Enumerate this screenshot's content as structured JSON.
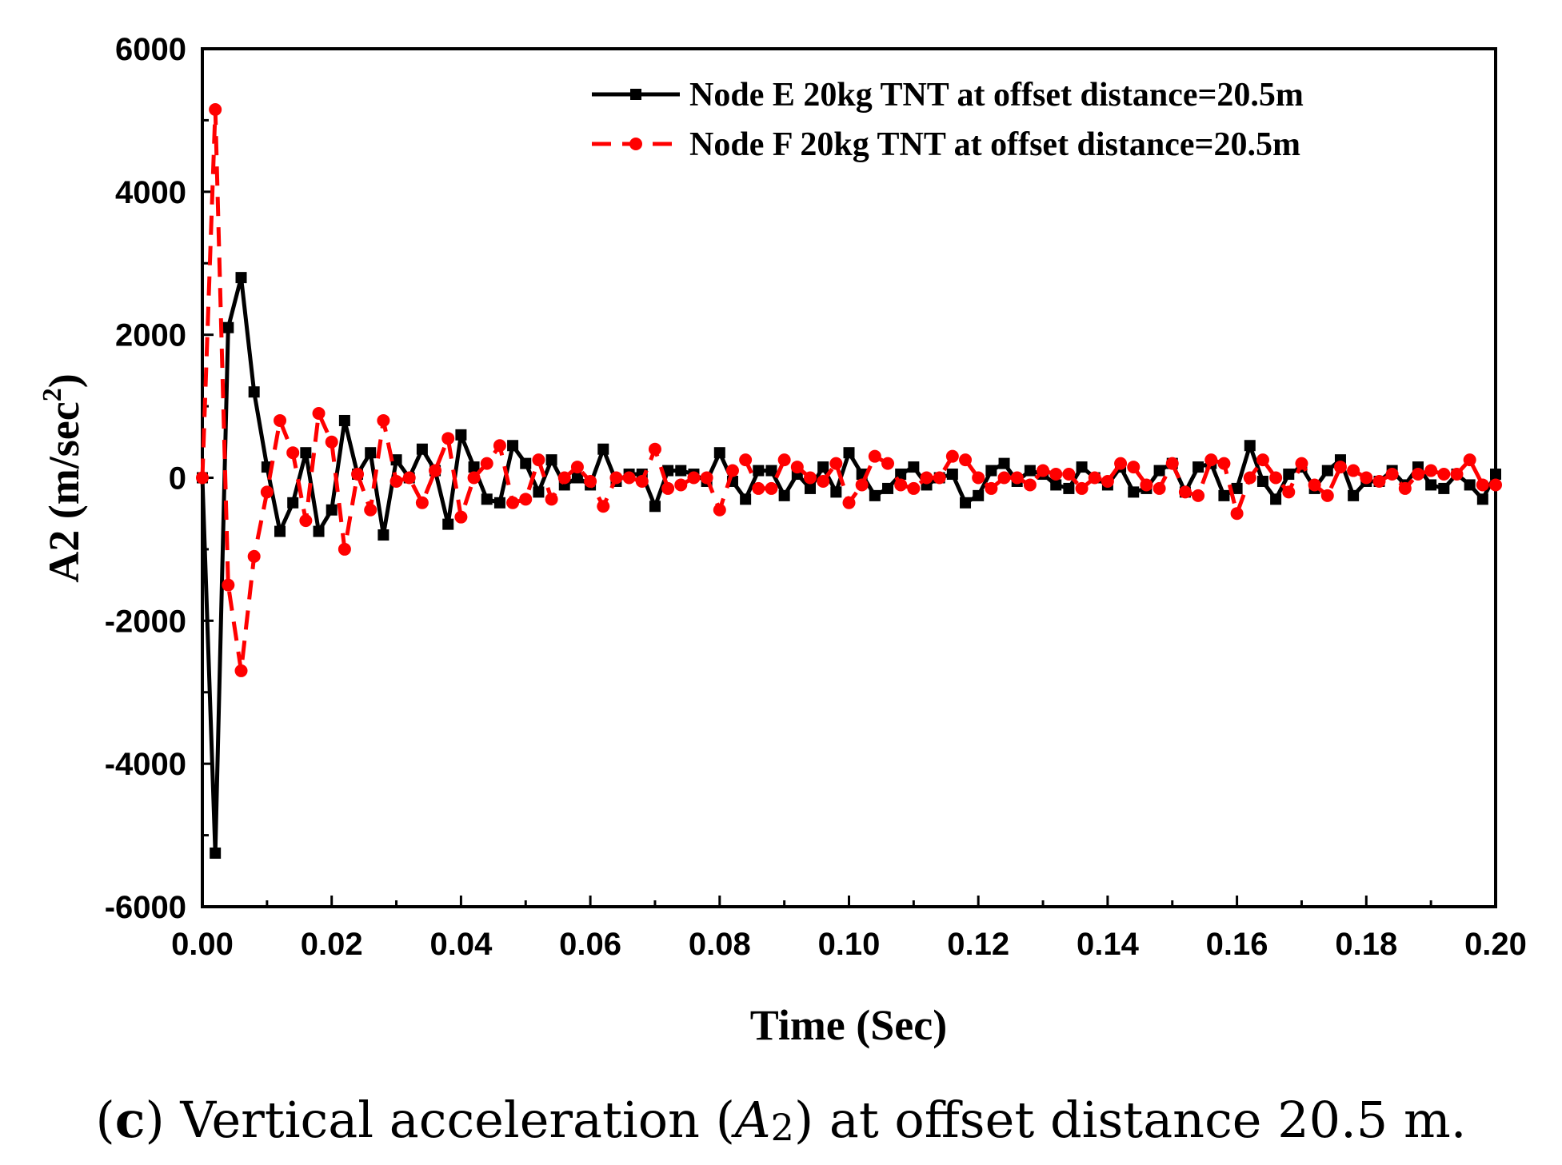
{
  "caption": {
    "open_paren": "(",
    "letter": "c",
    "before": ") Vertical acceleration (",
    "symbol": "A",
    "subscript": "2",
    "after": ") at offset distance 20.5 m."
  },
  "chart_data": {
    "type": "line",
    "title": "",
    "xlabel": "Time (Sec)",
    "ylabel_main": "A2 (m/sec",
    "ylabel_sup": "2",
    "ylabel_close": ")",
    "xlim": [
      0,
      0.2
    ],
    "ylim": [
      -6000,
      6000
    ],
    "xticks": [
      "0.00",
      "0.02",
      "0.04",
      "0.06",
      "0.08",
      "0.10",
      "0.12",
      "0.14",
      "0.16",
      "0.18",
      "0.20"
    ],
    "yticks": [
      "-6000",
      "-4000",
      "-2000",
      "0",
      "2000",
      "4000",
      "6000"
    ],
    "grid": false,
    "legend_position": "top-right",
    "x": [
      0,
      0.002,
      0.004,
      0.006,
      0.008,
      0.01,
      0.012,
      0.014,
      0.016,
      0.018,
      0.02,
      0.022,
      0.024,
      0.026,
      0.028,
      0.03,
      0.032,
      0.034,
      0.036,
      0.038,
      0.04,
      0.042,
      0.044,
      0.046,
      0.048,
      0.05,
      0.052,
      0.054,
      0.056,
      0.058,
      0.06,
      0.062,
      0.064,
      0.066,
      0.068,
      0.07,
      0.072,
      0.074,
      0.076,
      0.078,
      0.08,
      0.082,
      0.084,
      0.086,
      0.088,
      0.09,
      0.092,
      0.094,
      0.096,
      0.098,
      0.1,
      0.102,
      0.104,
      0.106,
      0.108,
      0.11,
      0.112,
      0.114,
      0.116,
      0.118,
      0.12,
      0.122,
      0.124,
      0.126,
      0.128,
      0.13,
      0.132,
      0.134,
      0.136,
      0.138,
      0.14,
      0.142,
      0.144,
      0.146,
      0.148,
      0.15,
      0.152,
      0.154,
      0.156,
      0.158,
      0.16,
      0.162,
      0.164,
      0.166,
      0.168,
      0.17,
      0.172,
      0.174,
      0.176,
      0.178,
      0.18,
      0.182,
      0.184,
      0.186,
      0.188,
      0.19,
      0.192,
      0.194,
      0.196,
      0.198,
      0.2
    ],
    "series": [
      {
        "name": "Node E 20kg TNT at offset distance=20.5m",
        "color": "#000000",
        "line_style": "solid",
        "marker": "square",
        "values": [
          0,
          -5250,
          2100,
          2800,
          1200,
          150,
          -750,
          -350,
          350,
          -750,
          -450,
          800,
          50,
          350,
          -800,
          250,
          0,
          400,
          100,
          -650,
          600,
          150,
          -300,
          -350,
          450,
          200,
          -200,
          250,
          -100,
          0,
          -100,
          400,
          -50,
          50,
          50,
          -400,
          100,
          100,
          50,
          -50,
          350,
          -50,
          -300,
          100,
          100,
          -250,
          50,
          -150,
          150,
          -200,
          350,
          50,
          -250,
          -150,
          50,
          150,
          -100,
          0,
          50,
          -350,
          -250,
          100,
          200,
          -50,
          100,
          50,
          -100,
          -150,
          150,
          0,
          -100,
          150,
          -200,
          -150,
          100,
          200,
          -200,
          150,
          200,
          -250,
          -150,
          450,
          -50,
          -300,
          50,
          150,
          -150,
          100,
          250,
          -250,
          -50,
          -50,
          100,
          -100,
          150,
          -100,
          -150,
          50,
          -100,
          -300,
          50
        ]
      },
      {
        "name": "Node F 20kg TNT at offset distance=20.5m",
        "color": "#ff0000",
        "line_style": "dashed",
        "marker": "circle",
        "values": [
          0,
          5150,
          -1500,
          -2700,
          -1100,
          -200,
          800,
          350,
          -600,
          900,
          500,
          -1000,
          50,
          -450,
          800,
          -50,
          0,
          -350,
          100,
          550,
          -550,
          0,
          200,
          450,
          -350,
          -300,
          250,
          -300,
          0,
          150,
          -50,
          -400,
          0,
          0,
          -50,
          400,
          -150,
          -100,
          0,
          0,
          -450,
          100,
          250,
          -150,
          -150,
          250,
          150,
          0,
          -50,
          200,
          -350,
          -100,
          300,
          200,
          -100,
          -150,
          0,
          0,
          300,
          250,
          0,
          -150,
          0,
          0,
          -100,
          100,
          50,
          50,
          -150,
          0,
          -50,
          200,
          150,
          -100,
          -150,
          200,
          -200,
          -250,
          250,
          200,
          -500,
          0,
          250,
          0,
          -200,
          200,
          -100,
          -250,
          150,
          100,
          0,
          -50,
          50,
          -150,
          50,
          100,
          50,
          50,
          250,
          -100,
          -100
        ]
      }
    ]
  }
}
